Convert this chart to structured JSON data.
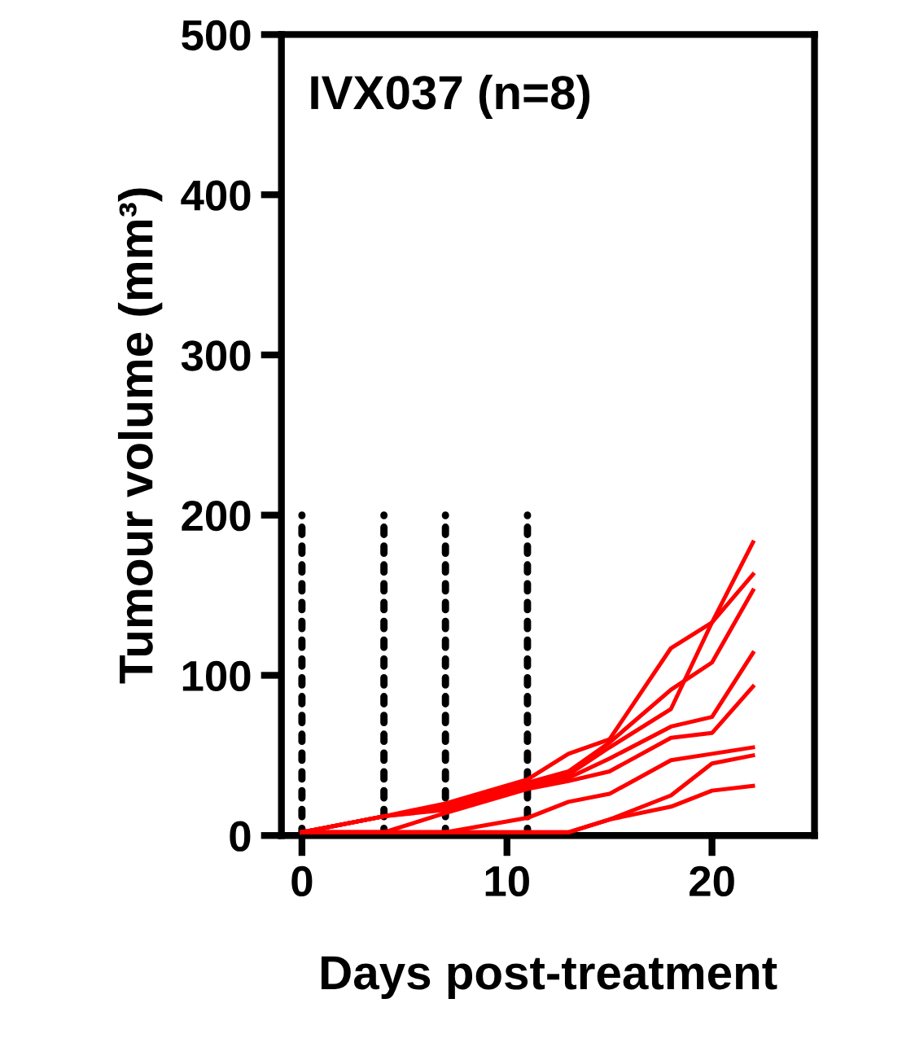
{
  "chart_data": {
    "type": "line",
    "xlabel": "Days post-treatment",
    "ylabel": "Tumour volume (mm³)",
    "annotations": [
      "IVX037 (n=8)"
    ],
    "x": [
      0,
      4,
      7,
      11,
      13,
      15,
      18,
      20,
      22
    ],
    "xlim": [
      -1,
      25
    ],
    "xticks": [
      0,
      10,
      20
    ],
    "ylim": [
      0,
      500
    ],
    "yticks": [
      0,
      100,
      200,
      300,
      400,
      500
    ],
    "grid": false,
    "marker": "none",
    "line_style": "solid",
    "series": [
      {
        "color": "#ff0000",
        "values": [
          2,
          12,
          20,
          35,
          51,
          60,
          117,
          133,
          163
        ]
      },
      {
        "color": "#ff0000",
        "values": [
          2,
          12,
          18,
          33,
          40,
          58,
          91,
          108,
          153
        ]
      },
      {
        "color": "#ff0000",
        "values": [
          2,
          12,
          17,
          32,
          38,
          55,
          79,
          133,
          183
        ]
      },
      {
        "color": "#ff0000",
        "values": [
          2,
          12,
          16,
          30,
          36,
          48,
          68,
          74,
          114
        ]
      },
      {
        "color": "#ff0000",
        "values": [
          2,
          2,
          14,
          29,
          34,
          40,
          61,
          64,
          93
        ]
      },
      {
        "color": "#ff0000",
        "values": [
          2,
          2,
          2,
          11,
          21,
          26,
          47,
          51,
          55
        ]
      },
      {
        "color": "#ff0000",
        "values": [
          2,
          2,
          2,
          2,
          2,
          10,
          25,
          45,
          50
        ]
      },
      {
        "color": "#ff0000",
        "values": [
          2,
          2,
          2,
          2,
          2,
          10,
          18,
          28,
          31
        ]
      },
      {
        "color": "#000000",
        "line_style": "dotted",
        "x": [
          0,
          0
        ],
        "values": [
          0,
          200
        ]
      },
      {
        "color": "#000000",
        "line_style": "dotted",
        "x": [
          4,
          4
        ],
        "values": [
          0,
          200
        ]
      },
      {
        "color": "#000000",
        "line_style": "dotted",
        "x": [
          7,
          7
        ],
        "values": [
          0,
          200
        ]
      },
      {
        "color": "#000000",
        "line_style": "dotted",
        "x": [
          11,
          11
        ],
        "values": [
          0,
          200
        ]
      }
    ]
  }
}
